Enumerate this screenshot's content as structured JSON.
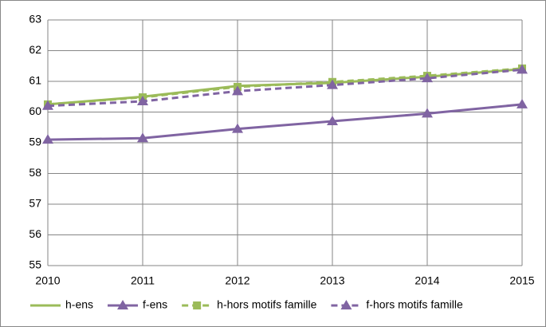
{
  "chart_data": {
    "type": "line",
    "x": [
      2010,
      2011,
      2012,
      2013,
      2014,
      2015
    ],
    "xlim": [
      2010,
      2015
    ],
    "xticks": [
      2010,
      2011,
      2012,
      2013,
      2014,
      2015
    ],
    "ylim": [
      55,
      63
    ],
    "yticks": [
      55,
      56,
      57,
      58,
      59,
      60,
      61,
      62,
      63
    ],
    "grid": true,
    "legend": "bottom",
    "series": [
      {
        "name": "h-ens",
        "color": "#9bbb59",
        "dash": false,
        "marker": "none",
        "values": [
          60.25,
          60.5,
          60.85,
          60.95,
          61.15,
          61.4
        ]
      },
      {
        "name": "f-ens",
        "color": "#8064a2",
        "dash": false,
        "marker": "triangle",
        "values": [
          59.1,
          59.15,
          59.45,
          59.7,
          59.95,
          60.25
        ]
      },
      {
        "name": "h-hors motifs famille",
        "color": "#9bbb59",
        "dash": true,
        "marker": "square",
        "values": [
          60.25,
          60.48,
          60.82,
          60.98,
          61.18,
          61.42
        ]
      },
      {
        "name": "f-hors motifs famille",
        "color": "#8064a2",
        "dash": true,
        "marker": "triangle",
        "values": [
          60.2,
          60.35,
          60.68,
          60.88,
          61.1,
          61.38
        ]
      }
    ]
  }
}
